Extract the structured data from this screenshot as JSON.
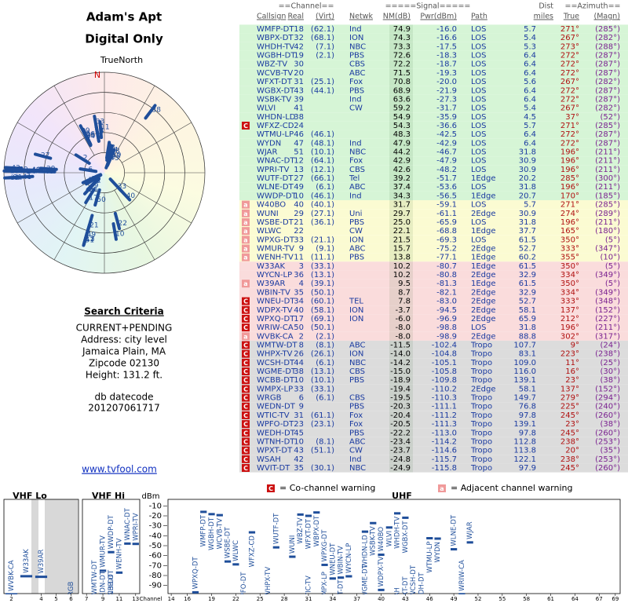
{
  "header": {
    "title": "Adam's Apt",
    "subtitle": "Digital Only"
  },
  "polar": {
    "label": "TrueNorth",
    "north": "N",
    "color": "#1f4e9a"
  },
  "criteria": {
    "heading": "Search Criteria",
    "lines": [
      "CURRENT+PENDING",
      "Address: city level",
      "Jamaica Plain, MA",
      "Zipcode 02130",
      "Height: 131.2 ft."
    ],
    "datecode_label": "db datecode",
    "datecode": "201207061717"
  },
  "link": "www.tvfool.com",
  "table": {
    "header_groups": [
      "==Channel==",
      "=====Signal=====",
      "Dist",
      "==Azimuth=="
    ],
    "columns": [
      "Callsign",
      "Real",
      "(Virt)",
      "Netwk",
      "NM(dB)",
      "Pwr(dBm)",
      "Path",
      "miles",
      "True",
      "(Magn)"
    ],
    "warning_colors": {
      "C": "#cc1111",
      "a": "#f09a9a"
    },
    "groups": [
      {
        "color": "#d6f5d6",
        "rows": [
          [
            null,
            "WMFP-DT",
            "18",
            "(62.1)",
            "Ind",
            "74.9",
            "-16.0",
            "LOS",
            "5.7",
            "271°",
            "(285°)"
          ],
          [
            null,
            "WBPX-DT",
            "32",
            "(68.1)",
            "ION",
            "74.3",
            "-16.6",
            "LOS",
            "5.4",
            "267°",
            "(282°)"
          ],
          [
            null,
            "WHDH-TV",
            "42",
            "(7.1)",
            "NBC",
            "73.3",
            "-17.5",
            "LOS",
            "5.3",
            "273°",
            "(288°)"
          ],
          [
            null,
            "WGBH-DT",
            "19",
            "(2.1)",
            "PBS",
            "72.6",
            "-18.3",
            "LOS",
            "6.4",
            "272°",
            "(287°)"
          ],
          [
            null,
            "WBZ-TV",
            "30",
            null,
            "CBS",
            "72.2",
            "-18.7",
            "LOS",
            "6.4",
            "272°",
            "(287°)"
          ],
          [
            null,
            "WCVB-TV",
            "20",
            null,
            "ABC",
            "71.5",
            "-19.3",
            "LOS",
            "6.4",
            "272°",
            "(287°)"
          ],
          [
            null,
            "WFXT-DT",
            "31",
            "(25.1)",
            "Fox",
            "70.8",
            "-20.0",
            "LOS",
            "5.6",
            "267°",
            "(282°)"
          ],
          [
            null,
            "WGBX-DT",
            "43",
            "(44.1)",
            "PBS",
            "68.9",
            "-21.9",
            "LOS",
            "6.4",
            "272°",
            "(287°)"
          ],
          [
            null,
            "WSBK-TV",
            "39",
            null,
            "Ind",
            "63.6",
            "-27.3",
            "LOS",
            "6.4",
            "272°",
            "(287°)"
          ],
          [
            null,
            "WLVI",
            "41",
            null,
            "CW",
            "59.2",
            "-31.7",
            "LOS",
            "5.4",
            "267°",
            "(282°)"
          ],
          [
            null,
            "WHDN-LD",
            "38",
            null,
            null,
            "54.9",
            "-35.9",
            "LOS",
            "4.5",
            "37°",
            "(52°)"
          ],
          [
            "C",
            "WFXZ-CD",
            "24",
            null,
            null,
            "54.3",
            "-36.6",
            "LOS",
            "5.7",
            "271°",
            "(285°)"
          ],
          [
            null,
            "WTMU-LP",
            "46",
            "(46.1)",
            null,
            "48.3",
            "-42.5",
            "LOS",
            "6.4",
            "272°",
            "(287°)"
          ],
          [
            null,
            "WYDN",
            "47",
            "(48.1)",
            "Ind",
            "47.9",
            "-42.9",
            "LOS",
            "6.4",
            "272°",
            "(287°)"
          ],
          [
            null,
            "WJAR",
            "51",
            "(10.1)",
            "NBC",
            "44.2",
            "-46.7",
            "LOS",
            "31.8",
            "196°",
            "(211°)"
          ],
          [
            null,
            "WNAC-DT",
            "12",
            "(64.1)",
            "Fox",
            "42.9",
            "-47.9",
            "LOS",
            "30.9",
            "196°",
            "(211°)"
          ],
          [
            null,
            "WPRI-TV",
            "13",
            "(12.1)",
            "CBS",
            "42.6",
            "-48.2",
            "LOS",
            "30.9",
            "196°",
            "(211°)"
          ],
          [
            null,
            "WUTF-DT",
            "27",
            "(66.1)",
            "Tel",
            "39.2",
            "-51.7",
            "1Edge",
            "20.2",
            "285°",
            "(300°)"
          ],
          [
            null,
            "WLNE-DT",
            "49",
            "(6.1)",
            "ABC",
            "37.4",
            "-53.6",
            "LOS",
            "31.8",
            "196°",
            "(211°)"
          ],
          [
            null,
            "WWDP-DT",
            "10",
            "(46.1)",
            "Ind",
            "34.3",
            "-56.5",
            "1Edge",
            "20.7",
            "170°",
            "(185°)"
          ]
        ]
      },
      {
        "color": "#fbfbd2",
        "rows": [
          [
            "a",
            "W40BO",
            "40",
            "(40.1)",
            null,
            "31.7",
            "-59.1",
            "LOS",
            "5.7",
            "271°",
            "(285°)"
          ],
          [
            "a",
            "WUNI",
            "29",
            "(27.1)",
            "Uni",
            "29.7",
            "-61.1",
            "2Edge",
            "30.9",
            "274°",
            "(289°)"
          ],
          [
            "a",
            "WSBE-DT",
            "21",
            "(36.1)",
            "PBS",
            "25.0",
            "-65.9",
            "LOS",
            "31.8",
            "196°",
            "(211°)"
          ],
          [
            "a",
            "WLWC",
            "22",
            null,
            "CW",
            "22.1",
            "-68.8",
            "1Edge",
            "37.7",
            "165°",
            "(180°)"
          ],
          [
            "a",
            "WPXG-DT",
            "33",
            "(21.1)",
            "ION",
            "21.5",
            "-69.3",
            "LOS",
            "61.5",
            "350°",
            "(5°)"
          ],
          [
            "a",
            "WMUR-TV",
            "9",
            "(9.1)",
            "ABC",
            "15.7",
            "-75.2",
            "2Edge",
            "52.7",
            "333°",
            "(347°)"
          ],
          [
            "a",
            "WENH-TV",
            "11",
            "(11.1)",
            "PBS",
            "13.8",
            "-77.1",
            "1Edge",
            "60.2",
            "355°",
            "(10°)"
          ]
        ]
      },
      {
        "color": "#fadcdc",
        "rows": [
          [
            null,
            "W33AK",
            "3",
            "(33.1)",
            null,
            "10.2",
            "-80.7",
            "1Edge",
            "61.5",
            "350°",
            "(5°)"
          ],
          [
            null,
            "WYCN-LP",
            "36",
            "(13.1)",
            null,
            "10.2",
            "-80.8",
            "2Edge",
            "32.9",
            "334°",
            "(349°)"
          ],
          [
            "a",
            "W39AR",
            "4",
            "(39.1)",
            null,
            "9.5",
            "-81.3",
            "1Edge",
            "61.5",
            "350°",
            "(5°)"
          ],
          [
            null,
            "WBIN-TV",
            "35",
            "(50.1)",
            null,
            "8.7",
            "-82.1",
            "2Edge",
            "32.9",
            "334°",
            "(349°)"
          ],
          [
            "C",
            "WNEU-DT",
            "34",
            "(60.1)",
            "TEL",
            "7.8",
            "-83.0",
            "2Edge",
            "52.7",
            "333°",
            "(348°)"
          ],
          [
            "C",
            "WDPX-TV",
            "40",
            "(58.1)",
            "ION",
            "-3.7",
            "-94.5",
            "2Edge",
            "58.1",
            "137°",
            "(152°)"
          ],
          [
            "C",
            "WPXQ-DT",
            "17",
            "(69.1)",
            "ION",
            "-6.0",
            "-96.9",
            "2Edge",
            "65.9",
            "212°",
            "(227°)"
          ],
          [
            "C",
            "WRIW-CA",
            "50",
            "(50.1)",
            null,
            "-8.0",
            "-98.8",
            "LOS",
            "31.8",
            "196°",
            "(211°)"
          ],
          [
            "a",
            "WVBK-CA",
            "2",
            "(2.1)",
            null,
            "-8.0",
            "-98.9",
            "2Edge",
            "88.8",
            "302°",
            "(317°)"
          ]
        ]
      },
      {
        "color": "#dcdcdc",
        "rows": [
          [
            "C",
            "WMTW-DT",
            "8",
            "(8.1)",
            "ABC",
            "-11.5",
            "-102.4",
            "Tropo",
            "107.7",
            "9°",
            "(24°)"
          ],
          [
            "C",
            "WHPX-TV",
            "26",
            "(26.1)",
            "ION",
            "-14.0",
            "-104.8",
            "Tropo",
            "83.1",
            "223°",
            "(238°)"
          ],
          [
            "C",
            "WCSH-DT",
            "44",
            "(6.1)",
            "NBC",
            "-14.2",
            "-105.1",
            "Tropo",
            "109.0",
            "11°",
            "(25°)"
          ],
          [
            "C",
            "WGME-DT",
            "38",
            "(13.1)",
            "CBS",
            "-15.0",
            "-105.8",
            "Tropo",
            "116.0",
            "16°",
            "(30°)"
          ],
          [
            "C",
            "WCBB-DT",
            "10",
            "(10.1)",
            "PBS",
            "-18.9",
            "-109.8",
            "Tropo",
            "139.1",
            "23°",
            "(38°)"
          ],
          [
            "C",
            "WMPX-LP",
            "33",
            "(33.1)",
            null,
            "-19.4",
            "-110.2",
            "2Edge",
            "58.1",
            "137°",
            "(152°)"
          ],
          [
            "C",
            "WRGB",
            "6",
            "(6.1)",
            "CBS",
            "-19.5",
            "-110.3",
            "Tropo",
            "149.7",
            "279°",
            "(294°)"
          ],
          [
            "C",
            "WEDN-DT",
            "9",
            null,
            "PBS",
            "-20.3",
            "-111.1",
            "Tropo",
            "76.8",
            "225°",
            "(240°)"
          ],
          [
            "C",
            "WTIC-TV",
            "31",
            "(61.1)",
            "Fox",
            "-20.4",
            "-111.2",
            "Tropo",
            "97.8",
            "245°",
            "(260°)"
          ],
          [
            "C",
            "WPFO-DT",
            "23",
            "(23.1)",
            "Fox",
            "-20.5",
            "-111.3",
            "Tropo",
            "139.1",
            "23°",
            "(38°)"
          ],
          [
            "C",
            "WEDH-DT",
            "45",
            null,
            "PBS",
            "-22.2",
            "-113.0",
            "Tropo",
            "97.8",
            "245°",
            "(260°)"
          ],
          [
            "C",
            "WTNH-DT",
            "10",
            "(8.1)",
            "ABC",
            "-23.4",
            "-114.2",
            "Tropo",
            "112.8",
            "238°",
            "(253°)"
          ],
          [
            "C",
            "WPXT-DT",
            "43",
            "(51.1)",
            "CW",
            "-23.7",
            "-114.6",
            "Tropo",
            "113.8",
            "20°",
            "(35°)"
          ],
          [
            "C",
            "WSAH",
            "42",
            null,
            "Ind",
            "-24.8",
            "-115.7",
            "Tropo",
            "122.1",
            "238°",
            "(253°)"
          ],
          [
            "C",
            "WVIT-DT",
            "35",
            "(30.1)",
            "NBC",
            "-24.9",
            "-115.8",
            "Tropo",
            "97.9",
            "245°",
            "(260°)"
          ]
        ]
      }
    ]
  },
  "spectrum": {
    "y_label": "dBm",
    "x_label": "Channel",
    "ylim": [
      -95,
      -5
    ],
    "yticks": [
      -10,
      -20,
      -30,
      -40,
      -50,
      -60,
      -70,
      -80,
      -90
    ],
    "color": "#1f4e9a",
    "panels": [
      {
        "name": "VHF Lo",
        "xlim": [
          1.5,
          6.5
        ],
        "xticks": [
          2,
          4,
          5,
          6
        ]
      },
      {
        "name": "VHF Hi",
        "xlim": [
          6.5,
          13.5
        ],
        "xticks": [
          7,
          9,
          11,
          13
        ]
      },
      {
        "name": "UHF",
        "xlim": [
          13.6,
          69.6
        ],
        "xticks": [
          14,
          16,
          19,
          22,
          25,
          28,
          31,
          34,
          37,
          40,
          43,
          46,
          49,
          52,
          55,
          58,
          61,
          64,
          67,
          69
        ]
      }
    ],
    "legend": [
      {
        "mark": "C",
        "text": "= Co-channel warning"
      },
      {
        "mark": "a",
        "text": "= Adjacent channel warning"
      }
    ]
  }
}
